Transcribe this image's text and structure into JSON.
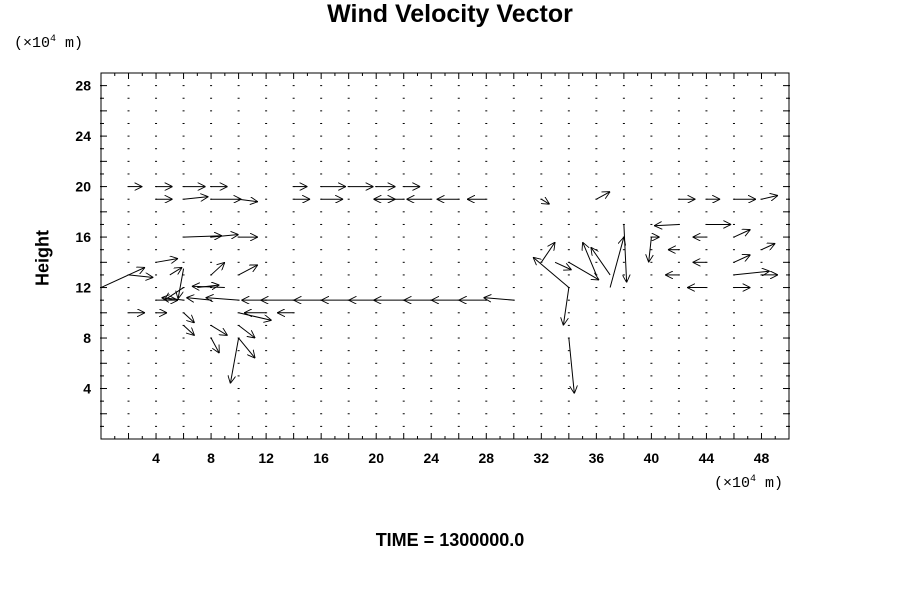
{
  "chart_data": {
    "type": "quiver",
    "title": "Wind Velocity Vector",
    "ylabel": "Height",
    "x_unit": {
      "prefix": "(×10",
      "exp": "4",
      "suffix": " m)"
    },
    "y_unit": {
      "prefix": "(×10",
      "exp": "4",
      "suffix": " m)"
    },
    "xlim": [
      0,
      50
    ],
    "ylim": [
      0,
      29
    ],
    "xticks": [
      4,
      8,
      12,
      16,
      20,
      24,
      28,
      32,
      36,
      40,
      44,
      48
    ],
    "yticks": [
      4,
      8,
      12,
      16,
      20,
      24,
      28
    ],
    "grid_x": [
      0,
      2,
      4,
      6,
      8,
      10,
      12,
      14,
      16,
      18,
      20,
      22,
      24,
      26,
      28,
      30,
      32,
      34,
      36,
      38,
      40,
      42,
      44,
      46,
      48,
      50
    ],
    "grid_y": [
      1,
      2,
      3,
      4,
      5,
      6,
      7,
      8,
      9,
      10,
      11,
      12,
      13,
      14,
      15,
      16,
      17,
      18,
      19,
      20,
      21,
      22,
      23,
      24,
      25,
      26,
      27,
      28
    ],
    "vectors": [
      [
        0,
        12,
        3.2,
        1.6
      ],
      [
        2,
        13,
        1.8,
        -0.2
      ],
      [
        4,
        14,
        1.6,
        0.3
      ],
      [
        5,
        13,
        0.9,
        0.6
      ],
      [
        6,
        12,
        -1.4,
        -1.0
      ],
      [
        6,
        13.5,
        -0.4,
        -2.4
      ],
      [
        7,
        12,
        1.6,
        0.2
      ],
      [
        8,
        13,
        1.0,
        1.0
      ],
      [
        9,
        12,
        -2.4,
        0.1
      ],
      [
        10,
        13,
        1.4,
        0.8
      ],
      [
        6,
        16,
        2.8,
        0.1
      ],
      [
        8,
        16,
        2.0,
        0.2
      ],
      [
        10,
        16,
        1.4,
        0.0
      ],
      [
        4,
        19,
        1.2,
        0.0
      ],
      [
        6,
        19,
        1.8,
        0.2
      ],
      [
        8,
        19,
        2.2,
        0.0
      ],
      [
        10,
        19,
        1.4,
        -0.2
      ],
      [
        2,
        20,
        1.0,
        0.0
      ],
      [
        4,
        20,
        1.2,
        0.0
      ],
      [
        6,
        20,
        1.6,
        0.0
      ],
      [
        8,
        20,
        1.2,
        0.0
      ],
      [
        14,
        20,
        1.0,
        0.0
      ],
      [
        16,
        20,
        1.8,
        0.0
      ],
      [
        18,
        20,
        1.8,
        0.0
      ],
      [
        20,
        20,
        1.4,
        0.0
      ],
      [
        22,
        20,
        1.2,
        0.0
      ],
      [
        14,
        19,
        1.2,
        0.0
      ],
      [
        16,
        19,
        1.6,
        0.0
      ],
      [
        20,
        19,
        1.4,
        0.0
      ],
      [
        22,
        19,
        -2.2,
        0.0
      ],
      [
        24,
        19,
        -1.8,
        0.0
      ],
      [
        26,
        19,
        -1.6,
        0.0
      ],
      [
        28,
        19,
        -1.4,
        0.0
      ],
      [
        32,
        19,
        0.6,
        -0.4
      ],
      [
        36,
        19,
        1.0,
        0.6
      ],
      [
        42,
        19,
        1.2,
        0.0
      ],
      [
        44,
        19,
        1.0,
        0.0
      ],
      [
        46,
        19,
        1.6,
        0.0
      ],
      [
        48,
        19,
        1.2,
        0.3
      ],
      [
        44,
        17,
        1.8,
        0.0
      ],
      [
        42,
        17,
        -1.8,
        -0.1
      ],
      [
        40,
        16,
        0.6,
        0.0
      ],
      [
        38,
        17,
        0.2,
        -4.6
      ],
      [
        40,
        16,
        -0.2,
        -2.0
      ],
      [
        37,
        12,
        1.0,
        4.0
      ],
      [
        36,
        13,
        -1.0,
        2.6
      ],
      [
        37,
        13,
        -1.4,
        2.2
      ],
      [
        34,
        12,
        -2.6,
        2.4
      ],
      [
        34,
        14,
        2.2,
        -1.4
      ],
      [
        33,
        14,
        1.2,
        -0.6
      ],
      [
        32,
        14,
        1.0,
        1.6
      ],
      [
        34,
        12,
        -0.4,
        -3.0
      ],
      [
        34,
        8,
        0.4,
        -4.4
      ],
      [
        30,
        11,
        -2.2,
        0.2
      ],
      [
        28,
        11,
        -2.0,
        0.0
      ],
      [
        26,
        11,
        -2.0,
        0.0
      ],
      [
        24,
        11,
        -2.0,
        0.0
      ],
      [
        22,
        11,
        -2.2,
        0.0
      ],
      [
        20,
        11,
        -2.0,
        0.0
      ],
      [
        18,
        11,
        -2.0,
        0.0
      ],
      [
        16,
        11,
        -2.0,
        0.0
      ],
      [
        14,
        11,
        -2.4,
        0.0
      ],
      [
        12,
        11,
        -1.8,
        0.0
      ],
      [
        10,
        11,
        -2.4,
        0.2
      ],
      [
        8,
        11,
        -1.8,
        0.2
      ],
      [
        6,
        11,
        -1.6,
        0.2
      ],
      [
        4,
        11,
        1.6,
        0.0
      ],
      [
        2,
        10,
        1.2,
        0.0
      ],
      [
        4,
        10,
        0.8,
        0.0
      ],
      [
        12,
        10,
        -1.6,
        0.0
      ],
      [
        14,
        10,
        -1.2,
        0.0
      ],
      [
        10,
        10,
        2.4,
        -0.6
      ],
      [
        10,
        9,
        1.2,
        -1.0
      ],
      [
        10,
        8,
        1.2,
        -1.6
      ],
      [
        10,
        8,
        -0.6,
        -3.6
      ],
      [
        8,
        8,
        0.6,
        -1.2
      ],
      [
        8,
        9,
        1.2,
        -0.8
      ],
      [
        6,
        9,
        0.8,
        -0.8
      ],
      [
        6,
        10,
        0.8,
        -0.8
      ],
      [
        46,
        13,
        2.6,
        0.3
      ],
      [
        48,
        13,
        1.2,
        0.0
      ],
      [
        44,
        12,
        -1.4,
        0.0
      ],
      [
        46,
        12,
        1.2,
        0.0
      ],
      [
        42,
        13,
        -1.0,
        0.0
      ],
      [
        44,
        14,
        -1.0,
        0.0
      ],
      [
        46,
        14,
        1.2,
        0.6
      ],
      [
        48,
        15,
        1.0,
        0.5
      ],
      [
        42,
        15,
        -0.8,
        0.0
      ],
      [
        44,
        16,
        -1.0,
        0.0
      ],
      [
        46,
        16,
        1.2,
        0.6
      ]
    ]
  },
  "time_label": "TIME = 1300000.0"
}
